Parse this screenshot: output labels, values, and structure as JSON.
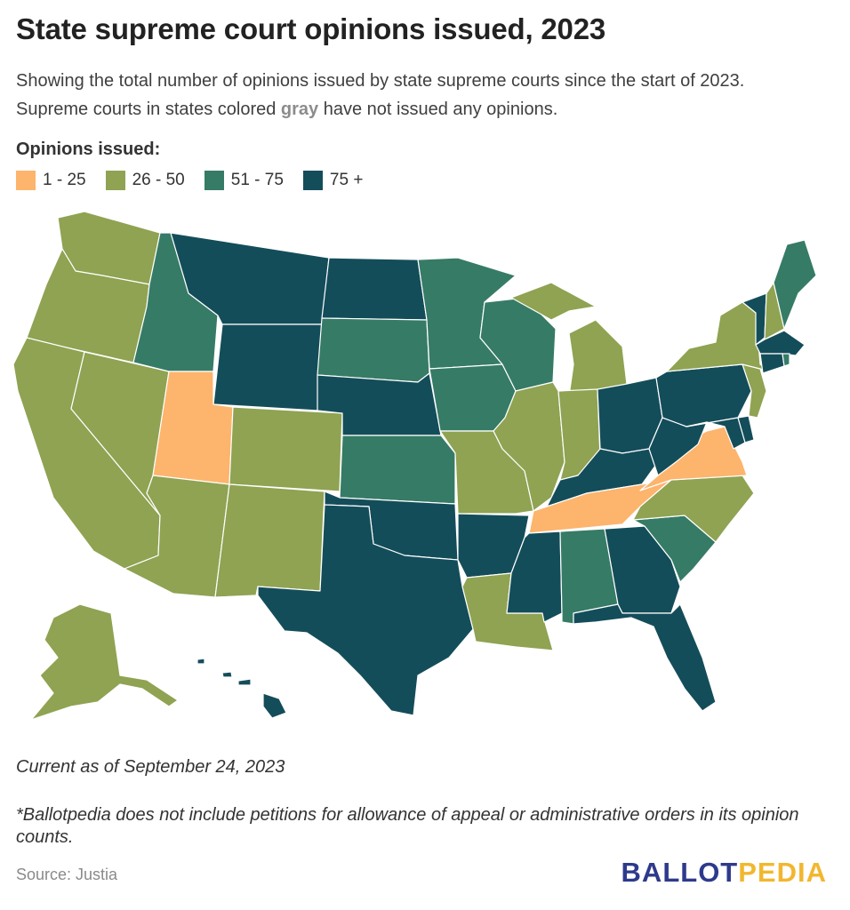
{
  "title": "State supreme court opinions issued, 2023",
  "subtitle_line1": "Showing the total number of opinions issued by state supreme courts since the start of 2023.",
  "subtitle_line2_pre": "Supreme courts in states colored ",
  "subtitle_gray_word": "gray",
  "subtitle_line2_post": " have not issued any opinions.",
  "legend_title": "Opinions issued:",
  "colors": {
    "c1": "#fdb46c",
    "c2": "#8fa352",
    "c3": "#367b66",
    "c4": "#144d5a"
  },
  "legend": [
    {
      "label": "1 - 25",
      "color": "#fdb46c"
    },
    {
      "label": "26 - 50",
      "color": "#8fa352"
    },
    {
      "label": "51 - 75",
      "color": "#367b66"
    },
    {
      "label": "75 +",
      "color": "#144d5a"
    }
  ],
  "state_categories": {
    "WA": "26 - 50",
    "OR": "26 - 50",
    "CA": "26 - 50",
    "NV": "26 - 50",
    "AZ": "26 - 50",
    "NM": "26 - 50",
    "CO": "26 - 50",
    "AK": "26 - 50",
    "MO": "26 - 50",
    "IL": "26 - 50",
    "IN": "26 - 50",
    "MI": "26 - 50",
    "LA": "26 - 50",
    "NC": "26 - 50",
    "NY": "26 - 50",
    "NJ": "26 - 50",
    "NH": "26 - 50",
    "UT": "1 - 25",
    "TN": "1 - 25",
    "VA": "1 - 25",
    "ID": "51 - 75",
    "SD": "51 - 75",
    "KS": "51 - 75",
    "MN": "51 - 75",
    "IA": "51 - 75",
    "WI": "51 - 75",
    "AL": "51 - 75",
    "SC": "51 - 75",
    "ME": "51 - 75",
    "RI": "51 - 75",
    "MT": "75 +",
    "WY": "75 +",
    "ND": "75 +",
    "NE": "75 +",
    "OK": "75 +",
    "TX": "75 +",
    "AR": "75 +",
    "MS": "75 +",
    "GA": "75 +",
    "FL": "75 +",
    "KY": "75 +",
    "OH": "75 +",
    "WV": "75 +",
    "PA": "75 +",
    "MD": "75 +",
    "DE": "75 +",
    "VT": "75 +",
    "MA": "75 +",
    "CT": "75 +",
    "HI": "75 +"
  },
  "current_as_of": "Current as of September 24, 2023",
  "footnote": "*Ballotpedia does not include petitions for allowance of appeal or administrative orders in its opinion counts.",
  "source": "Source: Justia",
  "logo_part1": "BALLOT",
  "logo_part2": "PEDIA"
}
